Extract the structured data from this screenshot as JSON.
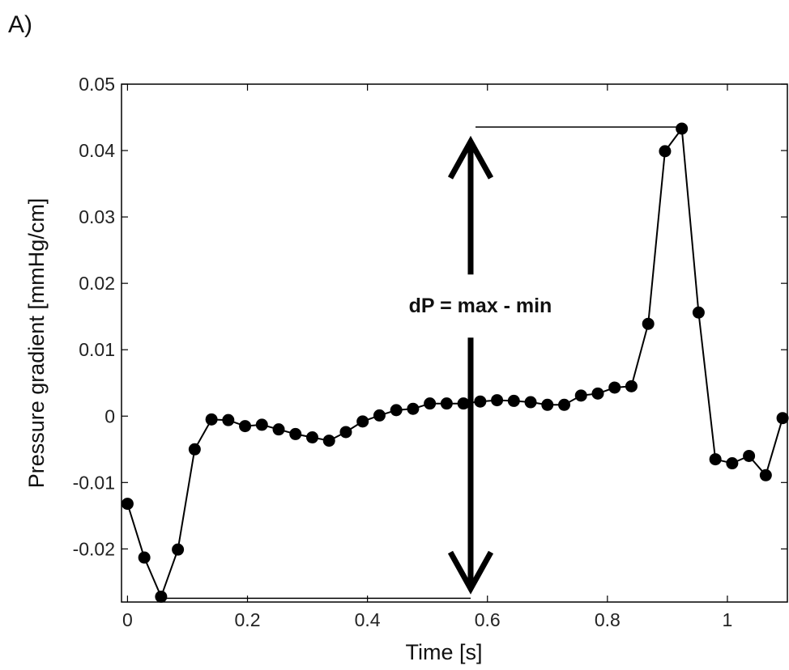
{
  "panel_label": "A)",
  "chart_data": {
    "type": "line",
    "xlabel": "Time  [s]",
    "ylabel": "Pressure gradient  [mmHg/cm]",
    "xlim": [
      -0.01,
      1.1
    ],
    "ylim": [
      -0.028,
      0.05
    ],
    "x_ticks": [
      0,
      0.2,
      0.4,
      0.6,
      0.8,
      1
    ],
    "x_tick_labels": [
      "0",
      "0.2",
      "0.4",
      "0.6",
      "0.8",
      "1"
    ],
    "y_ticks": [
      -0.02,
      -0.01,
      0,
      0.01,
      0.02,
      0.03,
      0.04,
      0.05
    ],
    "y_tick_labels": [
      "-0.02",
      "-0.01",
      "0",
      "0.01",
      "0.02",
      "0.03",
      "0.04",
      "0.05"
    ],
    "grid": false,
    "series": [
      {
        "color": "#000000",
        "marker": "circle",
        "x": [
          0,
          0.028,
          0.056,
          0.084,
          0.112,
          0.14,
          0.168,
          0.196,
          0.224,
          0.252,
          0.28,
          0.308,
          0.336,
          0.364,
          0.392,
          0.42,
          0.448,
          0.476,
          0.504,
          0.532,
          0.56,
          0.588,
          0.616,
          0.644,
          0.672,
          0.7,
          0.728,
          0.756,
          0.784,
          0.812,
          0.84,
          0.868,
          0.896,
          0.924,
          0.952,
          0.98,
          1.008,
          1.036,
          1.064,
          1.092
        ],
        "y": [
          -0.0132,
          -0.0213,
          -0.0272,
          -0.0201,
          -0.005,
          -0.0005,
          -0.0006,
          -0.0015,
          -0.0013,
          -0.002,
          -0.0027,
          -0.0032,
          -0.0037,
          -0.0024,
          -0.0008,
          0.0001,
          0.0009,
          0.0011,
          0.0019,
          0.0019,
          0.0019,
          0.0022,
          0.0024,
          0.0023,
          0.0021,
          0.0017,
          0.0017,
          0.0031,
          0.0034,
          0.0043,
          0.0045,
          0.0139,
          0.0399,
          0.0433,
          0.0156,
          -0.0065,
          -0.0071,
          -0.006,
          -0.0089,
          -0.0003
        ]
      }
    ],
    "annotations": {
      "text": "dP = max - min",
      "max_point": {
        "x": 0.924,
        "y": 0.0433
      },
      "min_point": {
        "x": 0.056,
        "y": -0.0272
      },
      "arrow_x": 0.572,
      "max_line_from_x": 0.572,
      "min_line_to_x": 0.572
    }
  }
}
